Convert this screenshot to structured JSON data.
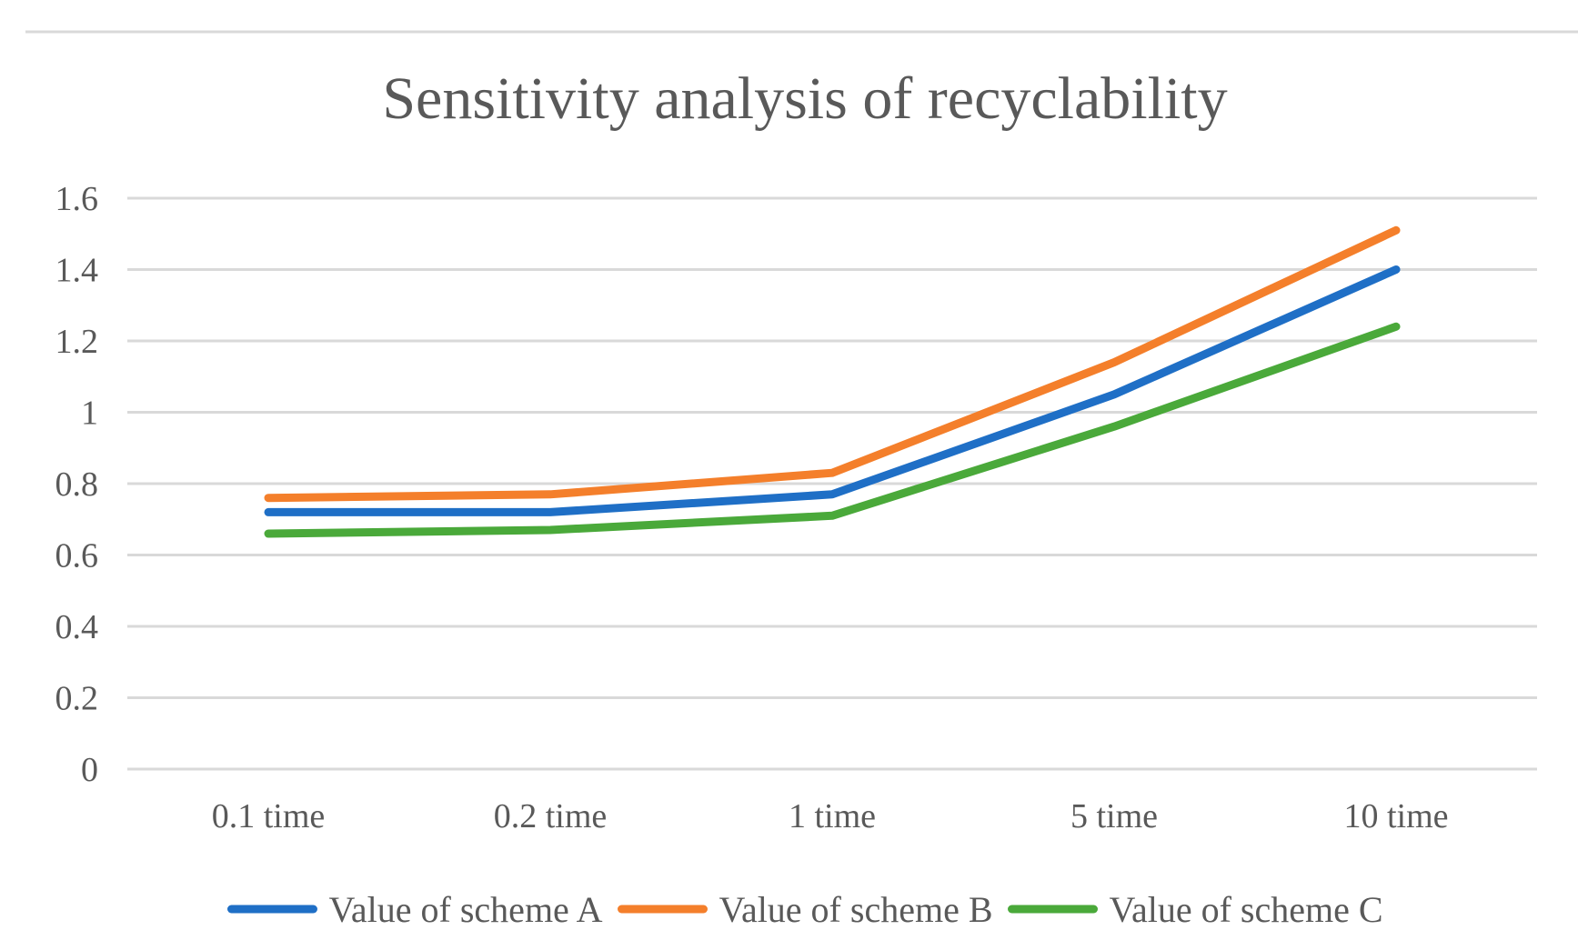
{
  "chart_data": {
    "type": "line",
    "title": "Sensitivity analysis of recyclability",
    "xlabel": "",
    "ylabel": "",
    "categories": [
      "0.1 time",
      "0.2 time",
      "1 time",
      "5 time",
      "10 time"
    ],
    "y_ticks": [
      "0",
      "0.2",
      "0.4",
      "0.6",
      "0.8",
      "1",
      "1.2",
      "1.4",
      "1.6"
    ],
    "ylim": [
      0,
      1.6
    ],
    "grid": true,
    "legend_position": "bottom",
    "series": [
      {
        "name": "Value of scheme A",
        "color": "#1f6fc6",
        "values": [
          0.72,
          0.72,
          0.77,
          1.05,
          1.4
        ]
      },
      {
        "name": "Value of scheme B",
        "color": "#f47f2b",
        "values": [
          0.76,
          0.77,
          0.83,
          1.14,
          1.51
        ]
      },
      {
        "name": "Value of scheme C",
        "color": "#4aa93a",
        "values": [
          0.66,
          0.67,
          0.71,
          0.96,
          1.24
        ]
      }
    ]
  }
}
